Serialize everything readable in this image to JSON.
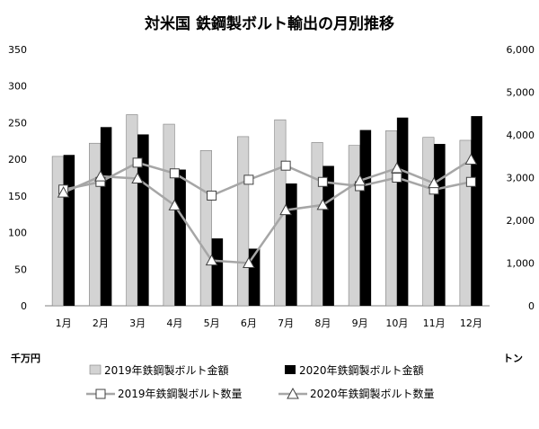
{
  "chart_data": {
    "type": "bar+line",
    "title": "対米国 鉄鋼製ボルト輸出の月別推移",
    "categories": [
      "1月",
      "2月",
      "3月",
      "4月",
      "5月",
      "6月",
      "7月",
      "8月",
      "9月",
      "10月",
      "11月",
      "12月"
    ],
    "left_axis": {
      "unit": "千万円",
      "ylim": [
        0,
        350
      ],
      "ticks": [
        0,
        50,
        100,
        150,
        200,
        250,
        300,
        350
      ],
      "tick_labels": [
        "0",
        "50",
        "100",
        "150",
        "200",
        "250",
        "300",
        "350"
      ]
    },
    "right_axis": {
      "unit": "トン",
      "ylim": [
        0,
        6000
      ],
      "ticks": [
        0,
        1000,
        2000,
        3000,
        4000,
        5000,
        6000
      ],
      "tick_labels": [
        "0",
        "1,000",
        "2,000",
        "3,000",
        "4,000",
        "5,000",
        "6,000"
      ]
    },
    "bar_series": [
      {
        "name": "2019年鉄鋼製ボルト金額",
        "color": "#d3d3d3",
        "axis": "left",
        "values": [
          204,
          222,
          261,
          248,
          212,
          231,
          254,
          223,
          219,
          239,
          230,
          226
        ]
      },
      {
        "name": "2020年鉄鋼製ボルト金額",
        "color": "#000000",
        "axis": "left",
        "values": [
          206,
          244,
          234,
          186,
          92,
          78,
          167,
          191,
          240,
          257,
          221,
          259
        ]
      }
    ],
    "line_series": [
      {
        "name": "2019年鉄鋼製ボルト数量",
        "marker": "square",
        "color": "#a6a6a6",
        "axis": "right",
        "values": [
          2720,
          2900,
          3350,
          3100,
          2580,
          2950,
          3280,
          2900,
          2800,
          3000,
          2720,
          2900
        ]
      },
      {
        "name": "2020年鉄鋼製ボルト数量",
        "marker": "triangle",
        "color": "#a6a6a6",
        "axis": "right",
        "values": [
          2650,
          3030,
          2980,
          2350,
          1060,
          1000,
          2240,
          2360,
          2930,
          3220,
          2870,
          3420
        ]
      }
    ],
    "grid": false,
    "legend_position": "bottom"
  }
}
